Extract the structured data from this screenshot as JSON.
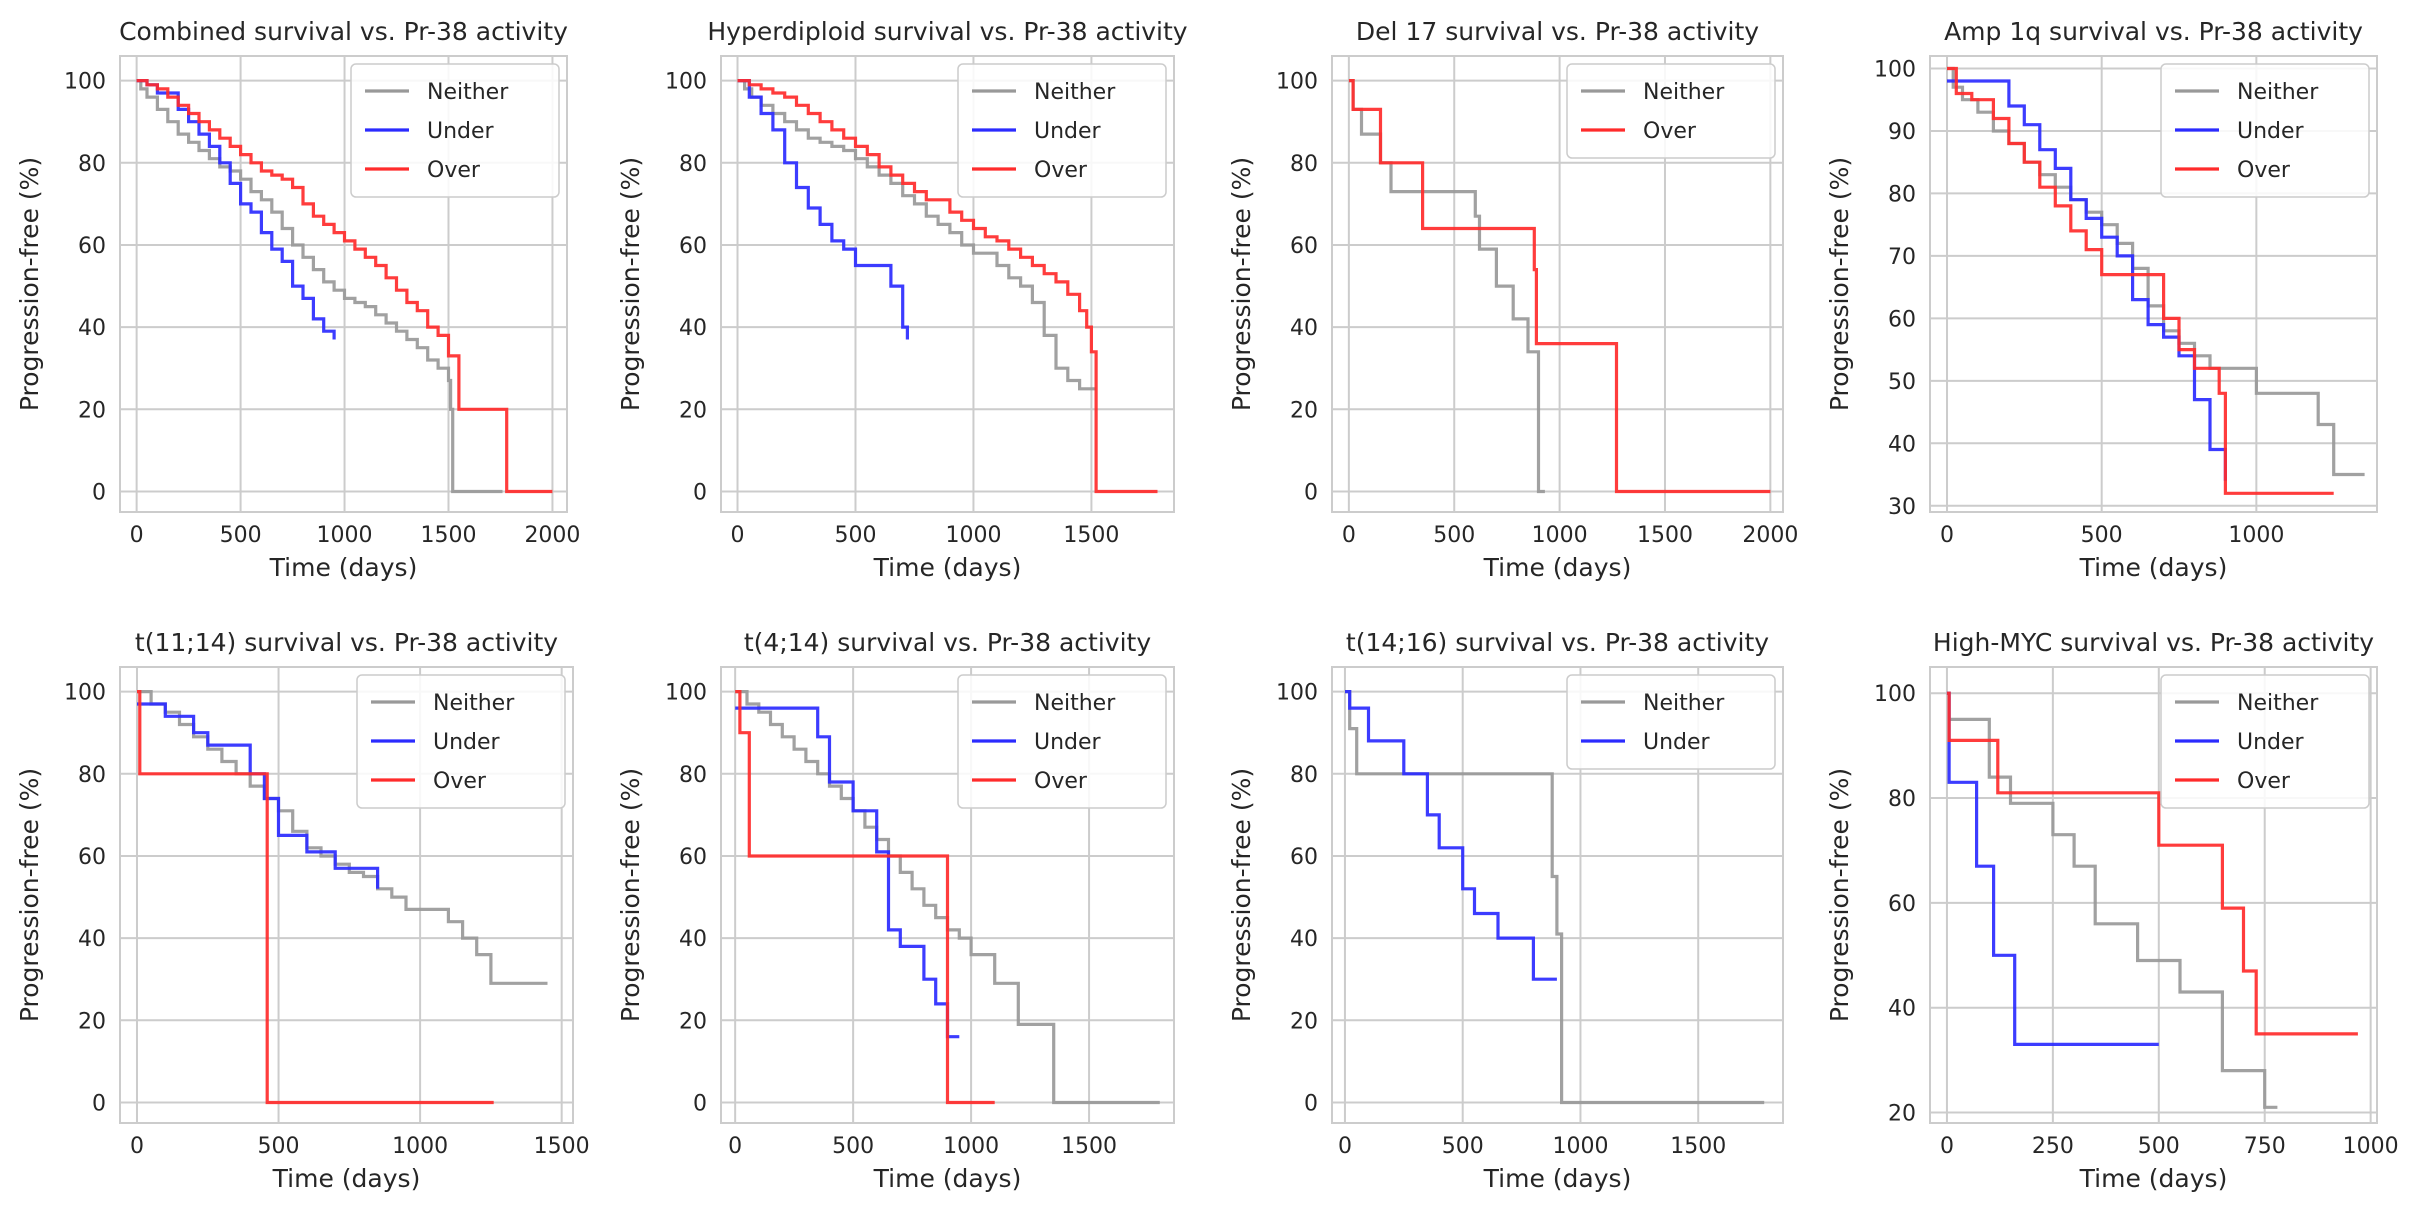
{
  "colors": {
    "Neither": "#999999",
    "Under": "#2b2bff",
    "Over": "#ff2b2b"
  },
  "chart_data": [
    {
      "type": "line",
      "step": true,
      "title": "Combined survival vs. Pr-38 activity",
      "xlabel": "Time (days)",
      "ylabel": "Progression-free (%)",
      "xlim": [
        -80,
        2070
      ],
      "ylim": [
        -5,
        106
      ],
      "xticks": [
        0,
        500,
        1000,
        1500,
        2000
      ],
      "yticks": [
        0,
        20,
        40,
        60,
        80,
        100
      ],
      "legend": "top-right",
      "series": [
        {
          "name": "Neither",
          "x": [
            0,
            20,
            50,
            100,
            150,
            200,
            250,
            300,
            350,
            400,
            450,
            500,
            550,
            600,
            650,
            700,
            750,
            800,
            850,
            900,
            950,
            1000,
            1050,
            1100,
            1150,
            1200,
            1250,
            1300,
            1350,
            1400,
            1450,
            1500,
            1510,
            1520,
            1760
          ],
          "y": [
            100,
            98,
            96,
            93,
            90,
            87,
            85,
            83,
            81,
            79,
            78,
            76,
            73,
            71,
            68,
            64,
            60,
            57,
            54,
            51,
            49,
            47,
            46,
            45,
            43,
            41,
            39,
            37,
            35,
            32,
            30,
            27,
            20,
            0,
            0
          ]
        },
        {
          "name": "Under",
          "x": [
            0,
            50,
            100,
            200,
            250,
            300,
            350,
            400,
            450,
            500,
            550,
            600,
            650,
            700,
            750,
            800,
            850,
            900,
            950
          ],
          "y": [
            100,
            99,
            97,
            93,
            90,
            87,
            84,
            80,
            75,
            70,
            68,
            63,
            59,
            56,
            50,
            47,
            42,
            39,
            37
          ]
        },
        {
          "name": "Over",
          "x": [
            0,
            50,
            100,
            150,
            200,
            250,
            300,
            350,
            400,
            450,
            500,
            550,
            600,
            650,
            700,
            750,
            800,
            850,
            900,
            950,
            1000,
            1050,
            1100,
            1150,
            1200,
            1250,
            1300,
            1350,
            1400,
            1450,
            1500,
            1550,
            1760,
            1780,
            2000
          ],
          "y": [
            100,
            99,
            98,
            96,
            94,
            92,
            90,
            88,
            86,
            84,
            82,
            80,
            78,
            77,
            76,
            74,
            70,
            67,
            65,
            63,
            61,
            59,
            57,
            55,
            52,
            49,
            46,
            44,
            40,
            38,
            33,
            20,
            20,
            0,
            0
          ]
        }
      ]
    },
    {
      "type": "line",
      "step": true,
      "title": "Hyperdiploid survival vs. Pr-38 activity",
      "xlabel": "Time (days)",
      "ylabel": "Progression-free (%)",
      "xlim": [
        -70,
        1850
      ],
      "ylim": [
        -5,
        106
      ],
      "xticks": [
        0,
        500,
        1000,
        1500
      ],
      "yticks": [
        0,
        20,
        40,
        60,
        80,
        100
      ],
      "legend": "top-right",
      "series": [
        {
          "name": "Neither",
          "x": [
            0,
            30,
            60,
            100,
            150,
            200,
            250,
            300,
            350,
            400,
            450,
            500,
            550,
            600,
            650,
            700,
            750,
            800,
            850,
            900,
            950,
            1000,
            1100,
            1150,
            1200,
            1250,
            1300,
            1350,
            1400,
            1450,
            1500,
            1520
          ],
          "y": [
            100,
            98,
            96,
            94,
            92,
            90,
            88,
            86,
            85,
            84,
            83,
            81,
            79,
            77,
            75,
            72,
            70,
            67,
            65,
            63,
            60,
            58,
            55,
            52,
            50,
            46,
            38,
            30,
            27,
            25,
            25,
            25
          ]
        },
        {
          "name": "Under",
          "x": [
            0,
            50,
            100,
            150,
            200,
            250,
            300,
            350,
            400,
            450,
            500,
            550,
            600,
            650,
            700,
            720
          ],
          "y": [
            100,
            96,
            92,
            88,
            80,
            74,
            69,
            65,
            61,
            59,
            55,
            55,
            55,
            50,
            40,
            37
          ]
        },
        {
          "name": "Over",
          "x": [
            0,
            50,
            100,
            150,
            200,
            250,
            300,
            350,
            400,
            450,
            500,
            550,
            600,
            650,
            700,
            750,
            800,
            900,
            950,
            1000,
            1050,
            1100,
            1150,
            1200,
            1250,
            1300,
            1350,
            1400,
            1450,
            1480,
            1500,
            1520,
            1780
          ],
          "y": [
            100,
            99,
            98,
            97,
            96,
            94,
            92,
            90,
            88,
            86,
            84,
            82,
            79,
            77,
            75,
            73,
            71,
            68,
            66,
            64,
            62,
            61,
            59,
            57,
            55,
            53,
            51,
            48,
            44,
            40,
            34,
            0,
            0
          ]
        }
      ]
    },
    {
      "type": "line",
      "step": true,
      "title": "Del 17 survival vs. Pr-38 activity",
      "xlabel": "Time (days)",
      "ylabel": "Progression-free (%)",
      "xlim": [
        -80,
        2060
      ],
      "ylim": [
        -5,
        106
      ],
      "xticks": [
        0,
        500,
        1000,
        1500,
        2000
      ],
      "yticks": [
        0,
        20,
        40,
        60,
        80,
        100
      ],
      "legend": "top-right",
      "series": [
        {
          "name": "Neither",
          "x": [
            0,
            20,
            60,
            150,
            200,
            350,
            600,
            620,
            680,
            700,
            780,
            850,
            880,
            900,
            930
          ],
          "y": [
            100,
            93,
            87,
            80,
            73,
            73,
            67,
            59,
            59,
            50,
            42,
            34,
            34,
            0,
            0
          ]
        },
        {
          "name": "Over",
          "x": [
            0,
            20,
            150,
            350,
            500,
            880,
            890,
            900,
            1250,
            1270,
            2000
          ],
          "y": [
            100,
            93,
            80,
            64,
            64,
            54,
            36,
            36,
            36,
            0,
            0
          ]
        }
      ]
    },
    {
      "type": "line",
      "step": true,
      "title": "Amp 1q survival vs. Pr-38 activity",
      "xlabel": "Time (days)",
      "ylabel": "Progression-free (%)",
      "xlim": [
        -55,
        1390
      ],
      "ylim": [
        29,
        102
      ],
      "xticks": [
        0,
        500,
        1000
      ],
      "yticks": [
        30,
        40,
        50,
        60,
        70,
        80,
        90,
        100
      ],
      "legend": "top-right",
      "series": [
        {
          "name": "Neither",
          "x": [
            0,
            20,
            50,
            100,
            150,
            200,
            250,
            300,
            350,
            400,
            450,
            500,
            550,
            600,
            650,
            700,
            750,
            800,
            850,
            900,
            1000,
            1100,
            1200,
            1250,
            1300,
            1350
          ],
          "y": [
            100,
            97,
            95,
            93,
            90,
            88,
            85,
            83,
            81,
            79,
            77,
            75,
            72,
            68,
            62,
            58,
            56,
            54,
            52,
            52,
            48,
            48,
            43,
            35,
            35,
            35
          ]
        },
        {
          "name": "Under",
          "x": [
            0,
            100,
            200,
            250,
            300,
            350,
            400,
            450,
            500,
            550,
            600,
            650,
            700,
            750,
            800,
            850,
            900
          ],
          "y": [
            98,
            98,
            94,
            91,
            87,
            84,
            79,
            76,
            73,
            70,
            63,
            59,
            57,
            54,
            47,
            39,
            34
          ]
        },
        {
          "name": "Over",
          "x": [
            0,
            30,
            80,
            150,
            200,
            250,
            300,
            350,
            400,
            450,
            500,
            550,
            600,
            650,
            700,
            750,
            800,
            850,
            880,
            900,
            1250
          ],
          "y": [
            100,
            96,
            95,
            92,
            88,
            85,
            81,
            78,
            74,
            71,
            67,
            67,
            67,
            67,
            60,
            55,
            52,
            52,
            48,
            32,
            32
          ]
        }
      ]
    },
    {
      "type": "line",
      "step": true,
      "title": "t(11;14) survival vs. Pr-38 activity",
      "xlabel": "Time (days)",
      "ylabel": "Progression-free (%)",
      "xlim": [
        -60,
        1540
      ],
      "ylim": [
        -5,
        106
      ],
      "xticks": [
        0,
        500,
        1000,
        1500
      ],
      "yticks": [
        0,
        20,
        40,
        60,
        80,
        100
      ],
      "legend": "top-right",
      "series": [
        {
          "name": "Neither",
          "x": [
            0,
            50,
            100,
            150,
            200,
            250,
            300,
            350,
            400,
            450,
            500,
            550,
            600,
            650,
            700,
            750,
            800,
            850,
            900,
            950,
            1000,
            1050,
            1100,
            1150,
            1200,
            1250,
            1450
          ],
          "y": [
            100,
            97,
            95,
            92,
            89,
            86,
            83,
            80,
            77,
            74,
            71,
            66,
            62,
            60,
            58,
            56,
            55,
            52,
            50,
            47,
            47,
            47,
            44,
            40,
            36,
            29,
            29
          ]
        },
        {
          "name": "Under",
          "x": [
            0,
            30,
            100,
            200,
            250,
            300,
            350,
            400,
            450,
            500,
            600,
            700,
            850
          ],
          "y": [
            97,
            97,
            94,
            90,
            87,
            87,
            87,
            80,
            74,
            65,
            61,
            57,
            52
          ]
        },
        {
          "name": "Over",
          "x": [
            0,
            10,
            450,
            460,
            1260
          ],
          "y": [
            100,
            80,
            80,
            0,
            0
          ]
        }
      ]
    },
    {
      "type": "line",
      "step": true,
      "title": "t(4;14) survival vs. Pr-38 activity",
      "xlabel": "Time (days)",
      "ylabel": "Progression-free (%)",
      "xlim": [
        -60,
        1860
      ],
      "ylim": [
        -5,
        106
      ],
      "xticks": [
        0,
        500,
        1000,
        1500
      ],
      "yticks": [
        0,
        20,
        40,
        60,
        80,
        100
      ],
      "legend": "top-right",
      "series": [
        {
          "name": "Neither",
          "x": [
            0,
            50,
            100,
            150,
            200,
            250,
            300,
            350,
            400,
            450,
            500,
            550,
            600,
            650,
            700,
            750,
            800,
            850,
            900,
            950,
            1000,
            1100,
            1200,
            1350,
            1800
          ],
          "y": [
            100,
            97,
            95,
            92,
            89,
            86,
            83,
            80,
            77,
            74,
            71,
            67,
            64,
            60,
            56,
            52,
            48,
            45,
            42,
            40,
            36,
            29,
            19,
            0,
            0
          ]
        },
        {
          "name": "Under",
          "x": [
            0,
            150,
            350,
            400,
            500,
            600,
            650,
            700,
            800,
            850,
            900,
            950
          ],
          "y": [
            96,
            96,
            89,
            78,
            71,
            61,
            42,
            38,
            30,
            24,
            16,
            16
          ]
        },
        {
          "name": "Over",
          "x": [
            0,
            20,
            60,
            880,
            900,
            1100
          ],
          "y": [
            100,
            90,
            60,
            60,
            0,
            0
          ]
        }
      ]
    },
    {
      "type": "line",
      "step": true,
      "title": "t(14;16) survival vs. Pr-38 activity",
      "xlabel": "Time (days)",
      "ylabel": "Progression-free (%)",
      "xlim": [
        -55,
        1860
      ],
      "ylim": [
        -5,
        106
      ],
      "xticks": [
        0,
        500,
        1000,
        1500
      ],
      "yticks": [
        0,
        20,
        40,
        60,
        80,
        100
      ],
      "legend": "top-right",
      "series": [
        {
          "name": "Neither",
          "x": [
            0,
            20,
            50,
            600,
            880,
            900,
            920,
            1780
          ],
          "y": [
            100,
            91,
            80,
            80,
            55,
            41,
            0,
            0
          ]
        },
        {
          "name": "Under",
          "x": [
            0,
            20,
            100,
            250,
            350,
            400,
            500,
            550,
            650,
            800,
            900
          ],
          "y": [
            100,
            96,
            88,
            80,
            70,
            62,
            52,
            46,
            40,
            30,
            30
          ]
        }
      ]
    },
    {
      "type": "line",
      "step": true,
      "title": "High-MYC survival vs. Pr-38 activity",
      "xlabel": "Time (days)",
      "ylabel": "Progression-free (%)",
      "xlim": [
        -40,
        1015
      ],
      "ylim": [
        18,
        105
      ],
      "xticks": [
        0,
        250,
        500,
        750,
        1000
      ],
      "yticks": [
        20,
        40,
        60,
        80,
        100
      ],
      "legend": "top-right",
      "series": [
        {
          "name": "Neither",
          "x": [
            0,
            5,
            100,
            150,
            250,
            300,
            350,
            450,
            500,
            550,
            560,
            650,
            700,
            750,
            780
          ],
          "y": [
            100,
            95,
            84,
            79,
            73,
            67,
            56,
            49,
            49,
            43,
            43,
            28,
            28,
            21,
            21
          ]
        },
        {
          "name": "Under",
          "x": [
            0,
            5,
            70,
            110,
            160,
            500
          ],
          "y": [
            100,
            83,
            67,
            50,
            33,
            33
          ]
        },
        {
          "name": "Over",
          "x": [
            0,
            5,
            120,
            500,
            650,
            700,
            730,
            750,
            970
          ],
          "y": [
            100,
            91,
            81,
            71,
            59,
            47,
            35,
            35,
            35
          ]
        }
      ]
    }
  ]
}
